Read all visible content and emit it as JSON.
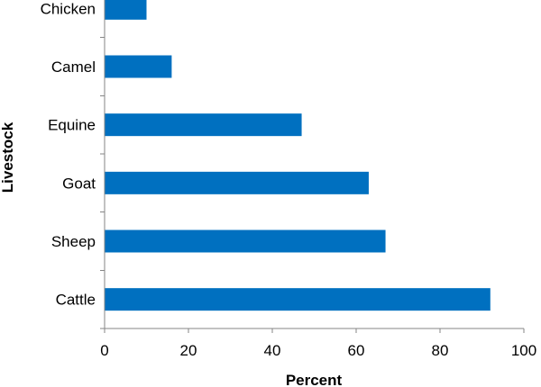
{
  "chart_data": {
    "type": "bar",
    "orientation": "horizontal",
    "categories": [
      "Chicken",
      "Camel",
      "Equine",
      "Goat",
      "Sheep",
      "Cattle"
    ],
    "values": [
      10,
      16,
      47,
      63,
      67,
      92
    ],
    "xlabel": "Percent",
    "ylabel": "Livestock",
    "xlim": [
      0,
      100
    ],
    "xticks": [
      "0",
      "20",
      "40",
      "60",
      "80",
      "100"
    ],
    "grid": false,
    "bar_color": "#0070C0"
  }
}
